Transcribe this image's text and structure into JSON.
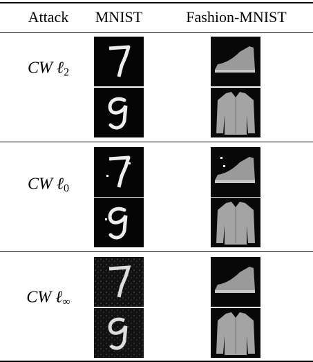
{
  "table": {
    "header": [
      "Attack",
      "MNIST",
      "Fashion-MNIST"
    ],
    "rows": [
      {
        "name": "CW",
        "symbol": "ℓ",
        "subscript": "2"
      },
      {
        "name": "CW",
        "symbol": "ℓ",
        "subscript": "0"
      },
      {
        "name": "CW",
        "symbol": "ℓ",
        "subscript": "∞"
      }
    ]
  }
}
